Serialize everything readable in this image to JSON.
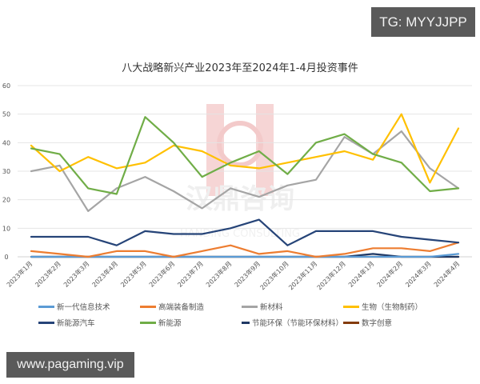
{
  "overlays": {
    "top_badge": "TG: MYYJJPP",
    "bottom_badge": "www.pagaming.vip"
  },
  "watermark": {
    "text_cn": "汉鼎咨询",
    "text_en": "HANDING CONSULTING"
  },
  "chart_data": {
    "type": "line",
    "title": "八大战略新兴产业2023年至2024年1-4月投资事件",
    "xlabel": "",
    "ylabel": "",
    "ylim": [
      0,
      60
    ],
    "yticks": [
      0,
      10,
      20,
      30,
      40,
      50,
      60
    ],
    "grid": true,
    "legend_position": "bottom",
    "categories": [
      "2023年1月",
      "2023年2月",
      "2023年3月",
      "2023年4月",
      "2023年5月",
      "2023年6月",
      "2023年7月",
      "2023年8月",
      "2023年9月",
      "2023年10月",
      "2023年11月",
      "2023年12月",
      "2024年1月",
      "2024年2月",
      "2024年3月",
      "2024年4月"
    ],
    "series": [
      {
        "name": "新一代信息技术",
        "color": "#5b9bd5",
        "values": [
          0,
          0,
          0,
          0,
          0,
          0,
          0,
          0,
          0,
          0,
          0,
          0,
          0,
          0,
          0,
          1
        ]
      },
      {
        "name": "高端装备制造",
        "color": "#ed7d31",
        "values": [
          2,
          1,
          0,
          2,
          2,
          0,
          2,
          4,
          1,
          2,
          0,
          1,
          3,
          3,
          2,
          5
        ]
      },
      {
        "name": "新材料",
        "color": "#a5a5a5",
        "values": [
          30,
          32,
          16,
          24,
          28,
          23,
          17,
          24,
          21,
          25,
          27,
          42,
          36,
          44,
          31,
          24
        ]
      },
      {
        "name": "生物（生物制药）",
        "color": "#ffc000",
        "values": [
          39,
          30,
          35,
          31,
          33,
          39,
          37,
          32,
          31,
          33,
          35,
          37,
          34,
          50,
          26,
          45
        ]
      },
      {
        "name": "新能源汽车",
        "color": "#264478",
        "values": [
          7,
          7,
          7,
          4,
          9,
          8,
          8,
          10,
          13,
          4,
          9,
          9,
          9,
          7,
          6,
          5
        ]
      },
      {
        "name": "新能源",
        "color": "#70ad47",
        "values": [
          38,
          36,
          24,
          22,
          49,
          40,
          28,
          33,
          37,
          29,
          40,
          43,
          36,
          33,
          23,
          24
        ]
      },
      {
        "name": "节能环保（节能环保材料）",
        "color": "#1f3864",
        "values": [
          0,
          0,
          0,
          0,
          0,
          0,
          0,
          0,
          0,
          0,
          0,
          0,
          1,
          0,
          0,
          0
        ]
      },
      {
        "name": "数字创意",
        "color": "#843c0c",
        "values": [
          0,
          0,
          0,
          0,
          0,
          0,
          0,
          0,
          0,
          0,
          0,
          0,
          0,
          0,
          0,
          0
        ]
      }
    ]
  }
}
